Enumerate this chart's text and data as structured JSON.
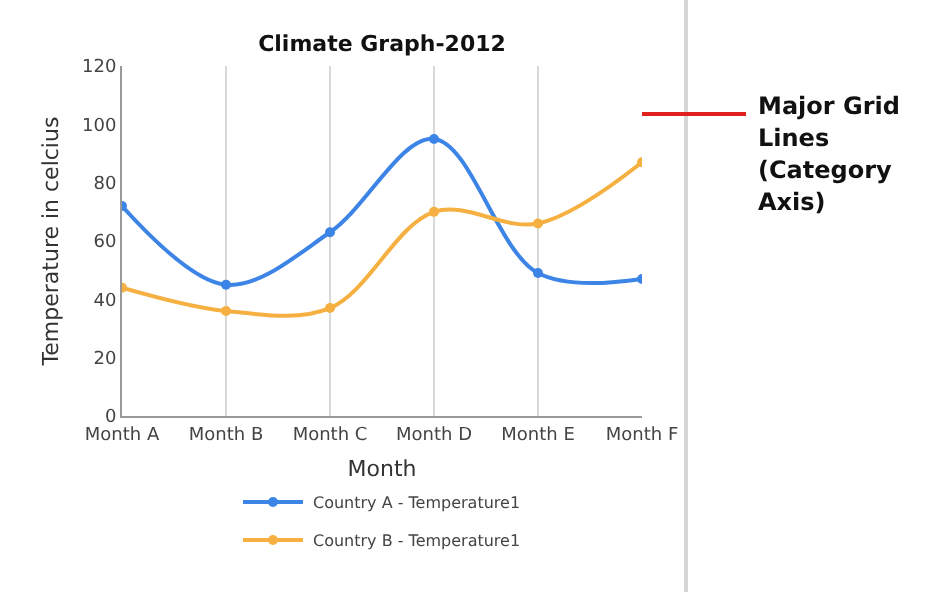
{
  "chart_data": {
    "type": "line",
    "title": "Climate Graph-2012",
    "xlabel": "Month",
    "ylabel": "Temperature in celcius",
    "categories": [
      "Month A",
      "Month B",
      "Month C",
      "Month D",
      "Month E",
      "Month F"
    ],
    "series": [
      {
        "name": "Country A - Temperature1",
        "color": "#3c84e6",
        "values": [
          72,
          45,
          63,
          95,
          49,
          47
        ]
      },
      {
        "name": "Country B - Temperature1",
        "color": "#f5b041",
        "values": [
          44,
          36,
          37,
          70,
          66,
          87
        ]
      }
    ],
    "ylim": [
      0,
      120
    ],
    "yticks": [
      0,
      20,
      40,
      60,
      80,
      100,
      120
    ],
    "grid": "x",
    "legend": "bottom",
    "marker": "circle",
    "line_style": "solid",
    "annotations": [
      "Major Grid Lines (Category Axis)"
    ]
  }
}
